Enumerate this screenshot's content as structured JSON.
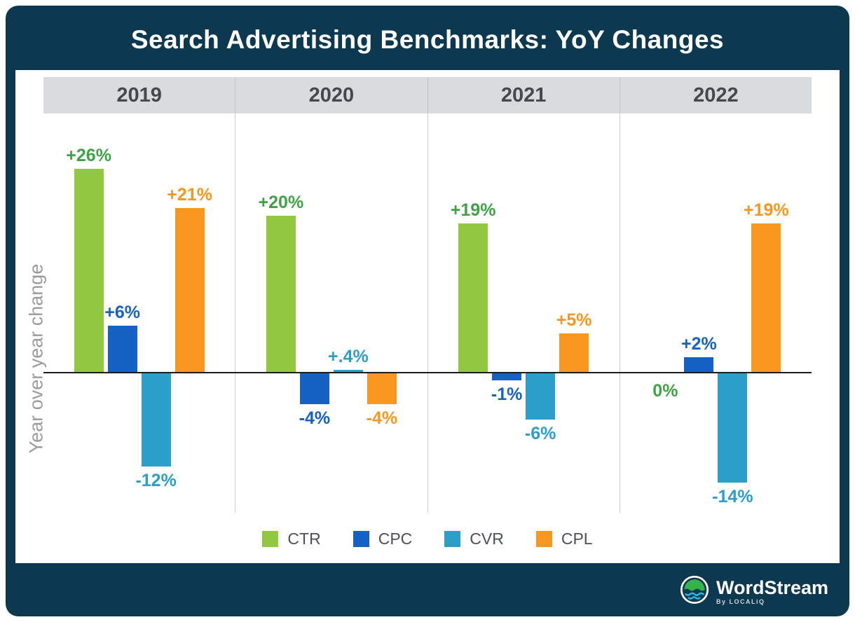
{
  "header": {
    "title": "Search Advertising Benchmarks: YoY Changes"
  },
  "chart_data": {
    "type": "bar",
    "title": "Search Advertising Benchmarks: YoY Changes",
    "ylabel": "Year over year change",
    "xlabel": "",
    "categories": [
      "2019",
      "2020",
      "2021",
      "2022"
    ],
    "series": [
      {
        "name": "CTR",
        "color": "#92c83f",
        "label_color": "#3fa345",
        "values": [
          26,
          20,
          19,
          0
        ],
        "labels": [
          "+26%",
          "+20%",
          "+19%",
          "0%"
        ]
      },
      {
        "name": "CPC",
        "color": "#1562c4",
        "label_color": "#1562c4",
        "values": [
          6,
          -4,
          -1,
          2
        ],
        "labels": [
          "+6%",
          "-4%",
          "-1%",
          "+2%"
        ]
      },
      {
        "name": "CVR",
        "color": "#2b9fc9",
        "label_color": "#2b9fc9",
        "values": [
          -12,
          0.4,
          -6,
          -14
        ],
        "labels": [
          "-12%",
          "+.4%",
          "-6%",
          "-14%"
        ]
      },
      {
        "name": "CPL",
        "color": "#f8971d",
        "label_color": "#f8971d",
        "values": [
          21,
          -4,
          5,
          19
        ],
        "labels": [
          "+21%",
          "-4%",
          "+5%",
          "+19%"
        ]
      }
    ],
    "ylim": [
      -16,
      30
    ],
    "grid": false,
    "legend_position": "bottom",
    "legend": [
      "CTR",
      "CPC",
      "CVR",
      "CPL"
    ]
  },
  "footer": {
    "brand": "WordStream",
    "byline": "By LOCALiQ"
  },
  "colors": {
    "frame": "#0d3950",
    "band": "#d8dcde",
    "zero_line": "#1c1c1c"
  }
}
